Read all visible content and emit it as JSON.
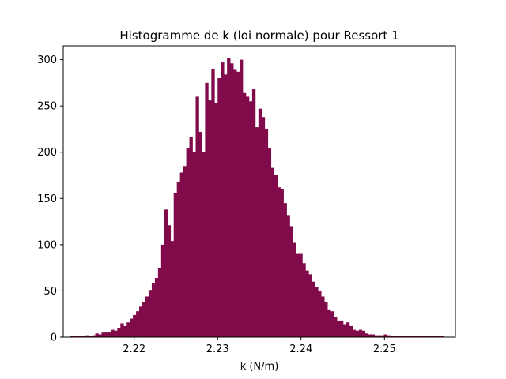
{
  "chart_data": {
    "type": "bar",
    "title": "Histogramme de k (loi normale) pour Ressort 1",
    "xlabel": "k (N/m)",
    "ylabel": "",
    "xlim": [
      2.2115,
      2.2585
    ],
    "ylim": [
      0,
      315
    ],
    "x_ticks": [
      2.22,
      2.23,
      2.24,
      2.25
    ],
    "y_ticks": [
      0,
      50,
      100,
      150,
      200,
      250,
      300
    ],
    "x_tick_labels": [
      "2.22",
      "2.23",
      "2.24",
      "2.25"
    ],
    "y_tick_labels": [
      "0",
      "50",
      "100",
      "150",
      "200",
      "250",
      "300"
    ],
    "grid": false,
    "bar_color": "#800a4a",
    "bin_start": 2.21233,
    "bin_width": 0.000376,
    "counts": [
      1,
      1,
      1,
      1,
      1,
      2,
      1,
      2,
      4,
      3,
      5,
      5,
      6,
      8,
      7,
      10,
      15,
      12,
      16,
      20,
      24,
      28,
      33,
      38,
      44,
      51,
      58,
      64,
      75,
      100,
      138,
      121,
      104,
      156,
      168,
      178,
      185,
      204,
      216,
      200,
      260,
      222,
      200,
      275,
      256,
      290,
      253,
      280,
      297,
      284,
      302,
      296,
      289,
      287,
      300,
      264,
      260,
      255,
      268,
      227,
      247,
      238,
      225,
      204,
      183,
      175,
      162,
      160,
      145,
      132,
      120,
      102,
      90,
      90,
      80,
      72,
      68,
      60,
      54,
      50,
      44,
      38,
      30,
      28,
      22,
      18,
      18,
      14,
      16,
      12,
      8,
      7,
      8,
      7,
      4,
      3,
      3,
      2,
      2,
      2,
      3,
      2,
      1,
      1,
      1,
      1,
      1,
      1,
      1,
      1,
      1,
      1,
      1,
      1,
      1,
      1,
      1,
      1,
      1
    ]
  }
}
